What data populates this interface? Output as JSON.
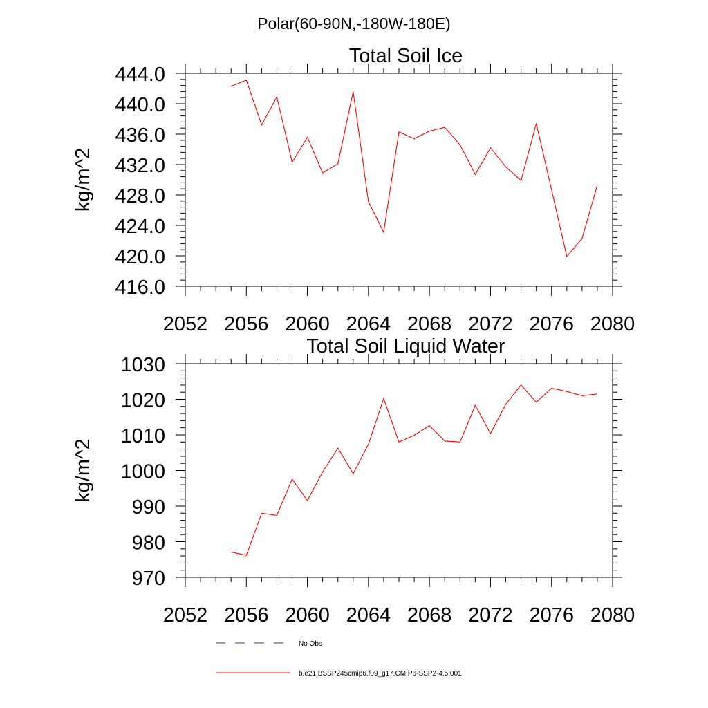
{
  "figure_title": "Polar(60-90N,-180W-180E)",
  "legend": {
    "entries": [
      {
        "label": "No Obs",
        "color": "#3b3b8a",
        "style": "dashed"
      },
      {
        "label": "b.e21.BSSP245cmip6.f09_g17.CMIP6-SSP2-4.5.001",
        "color": "#ff0000",
        "style": "solid"
      }
    ]
  },
  "chart_data": [
    {
      "type": "line",
      "title": "Total Soil Ice",
      "xlabel": "",
      "ylabel": "kg/m^2",
      "xlim": [
        2052,
        2080
      ],
      "ylim": [
        416,
        444
      ],
      "xticks": [
        2052,
        2056,
        2060,
        2064,
        2068,
        2072,
        2076,
        2080
      ],
      "xtick_labels": [
        "2052",
        "2056",
        "2060",
        "2064",
        "2068",
        "2072",
        "2076",
        "2080"
      ],
      "yticks": [
        416,
        420,
        424,
        428,
        432,
        436,
        440,
        444
      ],
      "ytick_labels": [
        "416.0",
        "420.0",
        "424.0",
        "428.0",
        "432.0",
        "436.0",
        "440.0",
        "444.0"
      ],
      "grid": false,
      "series": [
        {
          "name": "b.e21.BSSP245cmip6.f09_g17.CMIP6-SSP2-4.5.001",
          "color": "#ff0000",
          "x": [
            2055,
            2056,
            2057,
            2058,
            2059,
            2060,
            2061,
            2062,
            2063,
            2064,
            2065,
            2066,
            2067,
            2068,
            2069,
            2070,
            2071,
            2072,
            2073,
            2074,
            2075,
            2076,
            2077,
            2078,
            2079
          ],
          "y": [
            442.3,
            443.1,
            437.2,
            440.9,
            432.3,
            435.6,
            430.9,
            432.1,
            441.6,
            427.1,
            423.1,
            436.3,
            435.4,
            436.4,
            436.9,
            434.6,
            430.7,
            434.2,
            431.7,
            429.9,
            437.4,
            428.7,
            419.9,
            422.3,
            429.3
          ]
        }
      ]
    },
    {
      "type": "line",
      "title": "Total Soil Liquid Water",
      "xlabel": "",
      "ylabel": "kg/m^2",
      "xlim": [
        2052,
        2080
      ],
      "ylim": [
        970,
        1030
      ],
      "xticks": [
        2052,
        2056,
        2060,
        2064,
        2068,
        2072,
        2076,
        2080
      ],
      "xtick_labels": [
        "2052",
        "2056",
        "2060",
        "2064",
        "2068",
        "2072",
        "2076",
        "2080"
      ],
      "yticks": [
        970,
        980,
        990,
        1000,
        1010,
        1020,
        1030
      ],
      "ytick_labels": [
        "970",
        "980",
        "990",
        "1000",
        "1010",
        "1020",
        "1030"
      ],
      "grid": false,
      "series": [
        {
          "name": "b.e21.BSSP245cmip6.f09_g17.CMIP6-SSP2-4.5.001",
          "color": "#ff0000",
          "x": [
            2055,
            2056,
            2057,
            2058,
            2059,
            2060,
            2061,
            2062,
            2063,
            2064,
            2065,
            2066,
            2067,
            2068,
            2069,
            2070,
            2071,
            2072,
            2073,
            2074,
            2075,
            2076,
            2077,
            2078,
            2079
          ],
          "y": [
            977.1,
            976.2,
            988.0,
            987.4,
            997.6,
            991.6,
            999.6,
            1006.3,
            999.1,
            1007.4,
            1020.2,
            1008.0,
            1009.9,
            1012.6,
            1008.3,
            1008.0,
            1018.3,
            1010.4,
            1018.6,
            1024.0,
            1019.2,
            1023.1,
            1022.2,
            1021.0,
            1021.5
          ]
        }
      ]
    }
  ]
}
